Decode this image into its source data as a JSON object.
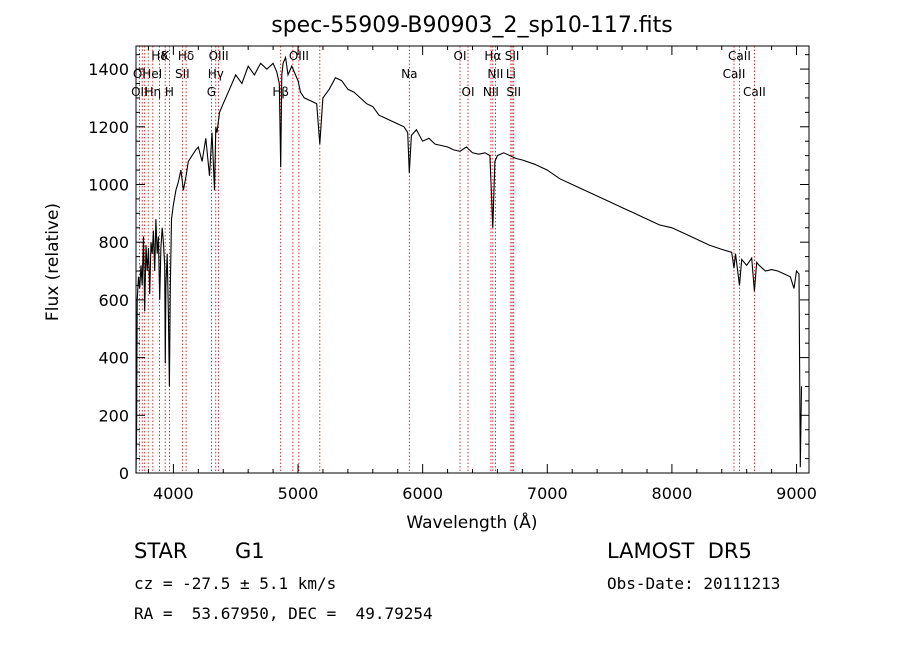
{
  "chart_data": {
    "type": "line",
    "title": "spec-55909-B90903_2_sp10-117.fits",
    "xlabel": "Wavelength (Å)",
    "ylabel": "Flux (relative)",
    "xlim": [
      3700,
      9100
    ],
    "ylim": [
      0,
      1480
    ],
    "xticks": [
      4000,
      5000,
      6000,
      7000,
      8000,
      9000
    ],
    "yticks": [
      0,
      200,
      400,
      600,
      800,
      1000,
      1200,
      1400
    ],
    "grid": false,
    "line_color": "#000000",
    "line_marker_color": "#cc0000",
    "spectrum": {
      "x": [
        3700,
        3705,
        3710,
        3720,
        3730,
        3740,
        3750,
        3760,
        3770,
        3780,
        3790,
        3800,
        3810,
        3820,
        3830,
        3840,
        3850,
        3860,
        3870,
        3880,
        3890,
        3900,
        3910,
        3920,
        3930,
        3935,
        3940,
        3950,
        3960,
        3968,
        3975,
        3985,
        4000,
        4020,
        4040,
        4060,
        4080,
        4102,
        4120,
        4150,
        4180,
        4200,
        4230,
        4260,
        4290,
        4310,
        4330,
        4340,
        4350,
        4370,
        4400,
        4450,
        4500,
        4550,
        4600,
        4650,
        4700,
        4750,
        4800,
        4830,
        4850,
        4861,
        4870,
        4880,
        4900,
        4920,
        4950,
        4980,
        5000,
        5020,
        5050,
        5100,
        5150,
        5175,
        5200,
        5250,
        5300,
        5350,
        5400,
        5450,
        5500,
        5550,
        5600,
        5650,
        5700,
        5750,
        5800,
        5850,
        5880,
        5893,
        5910,
        5950,
        6000,
        6050,
        6100,
        6150,
        6200,
        6250,
        6300,
        6350,
        6400,
        6450,
        6500,
        6540,
        6563,
        6580,
        6600,
        6650,
        6700,
        6750,
        6800,
        6900,
        7000,
        7100,
        7200,
        7300,
        7400,
        7500,
        7600,
        7700,
        7800,
        7900,
        8000,
        8100,
        8200,
        8300,
        8400,
        8480,
        8498,
        8510,
        8542,
        8560,
        8600,
        8640,
        8662,
        8680,
        8700,
        8750,
        8800,
        8850,
        8900,
        8950,
        8980,
        9000,
        9020,
        9030,
        9040
      ],
      "y": [
        0,
        150,
        600,
        680,
        640,
        720,
        650,
        820,
        560,
        790,
        700,
        780,
        620,
        800,
        760,
        840,
        700,
        880,
        760,
        820,
        600,
        780,
        850,
        800,
        720,
        380,
        650,
        760,
        550,
        300,
        640,
        880,
        930,
        980,
        1010,
        1050,
        980,
        1030,
        1080,
        1100,
        1120,
        1130,
        1080,
        1160,
        1030,
        1180,
        980,
        1200,
        1180,
        1250,
        1280,
        1330,
        1380,
        1350,
        1410,
        1380,
        1420,
        1400,
        1420,
        1390,
        1350,
        1060,
        1380,
        1420,
        1440,
        1380,
        1410,
        1380,
        1360,
        1320,
        1300,
        1290,
        1280,
        1140,
        1300,
        1330,
        1370,
        1360,
        1330,
        1320,
        1300,
        1280,
        1270,
        1240,
        1230,
        1220,
        1210,
        1200,
        1180,
        1040,
        1170,
        1190,
        1150,
        1160,
        1140,
        1135,
        1130,
        1120,
        1115,
        1130,
        1110,
        1105,
        1110,
        1100,
        850,
        1080,
        1100,
        1110,
        1100,
        1090,
        1085,
        1070,
        1050,
        1020,
        1000,
        980,
        960,
        940,
        920,
        900,
        880,
        860,
        850,
        830,
        810,
        790,
        775,
        765,
        710,
        760,
        650,
        740,
        720,
        745,
        630,
        730,
        720,
        700,
        705,
        700,
        690,
        680,
        640,
        700,
        690,
        20,
        300
      ]
    },
    "line_labels_row1": [
      {
        "text": "Hδ",
        "wl": 3888
      },
      {
        "text": "K",
        "wl": 3934
      },
      {
        "text": "Hδ",
        "wl": 4102
      },
      {
        "text": "OIII",
        "wl": 4363
      },
      {
        "text": "OIII",
        "wl": 5007
      },
      {
        "text": "OI",
        "wl": 6300
      },
      {
        "text": "Hα",
        "wl": 6563
      },
      {
        "text": "SII",
        "wl": 6718
      },
      {
        "text": "CaII",
        "wl": 8542
      }
    ],
    "line_labels_row2": [
      {
        "text": "OI",
        "wl": 3727
      },
      {
        "text": "HeI",
        "wl": 3830
      },
      {
        "text": "SII",
        "wl": 4072
      },
      {
        "text": "Hγ",
        "wl": 4340
      },
      {
        "text": "Na",
        "wl": 5893
      },
      {
        "text": "NII",
        "wl": 6584
      },
      {
        "text": "Li",
        "wl": 6708
      },
      {
        "text": "CaII",
        "wl": 8498
      }
    ],
    "line_labels_row3": [
      {
        "text": "OII",
        "wl": 3727
      },
      {
        "text": "Hη",
        "wl": 3835
      },
      {
        "text": "H",
        "wl": 3968
      },
      {
        "text": "G",
        "wl": 4305
      },
      {
        "text": "Hβ",
        "wl": 4861
      },
      {
        "text": "OI",
        "wl": 6364
      },
      {
        "text": "NII",
        "wl": 6548
      },
      {
        "text": "SII",
        "wl": 6731
      },
      {
        "text": "CaII",
        "wl": 8662
      }
    ],
    "marker_lines": [
      3727,
      3750,
      3770,
      3798,
      3835,
      3889,
      3934,
      3968,
      4072,
      4102,
      4305,
      4340,
      4363,
      4861,
      4959,
      5007,
      5175,
      5893,
      6300,
      6364,
      6548,
      6563,
      6584,
      6708,
      6718,
      6731,
      8498,
      8542,
      8662
    ]
  },
  "info": {
    "class_label": "STAR",
    "subclass_label": "G1",
    "survey": "LAMOST  DR5",
    "cz": "cz = -27.5 ± 5.1 km/s",
    "obs_date": "Obs-Date: 20111213",
    "coords": "RA =  53.67950, DEC =  49.79254"
  }
}
